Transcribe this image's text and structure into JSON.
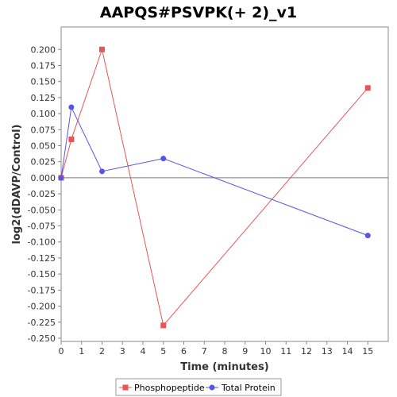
{
  "chart_data": {
    "type": "line",
    "title": "AAPQS#PSVPK(+ 2)_v1",
    "xlabel": "Time (minutes)",
    "ylabel": "log2(dDAVP/Control)",
    "xlim": [
      0,
      16
    ],
    "ylim": [
      -0.255,
      0.235
    ],
    "x_ticks": [
      0,
      1,
      2,
      3,
      4,
      5,
      6,
      7,
      8,
      9,
      10,
      11,
      12,
      13,
      14,
      15
    ],
    "y_ticks": [
      0.2,
      0.175,
      0.15,
      0.125,
      0.1,
      0.075,
      0.05,
      0.025,
      0.0,
      -0.025,
      -0.05,
      -0.075,
      -0.1,
      -0.125,
      -0.15,
      -0.175,
      -0.2,
      -0.225,
      -0.25
    ],
    "y_tick_labels": [
      "0.200",
      "0.175",
      "0.150",
      "0.125",
      "0.100",
      "0.075",
      "0.050",
      "0.025",
      "0.000",
      "-0.025",
      "-0.050",
      "-0.075",
      "-0.100",
      "-0.125",
      "-0.150",
      "-0.175",
      "-0.200",
      "-0.225",
      "-0.250"
    ],
    "grid": false,
    "zero_line": true,
    "legend_position": "bottom",
    "series": [
      {
        "name": "Phosphopeptide",
        "color": "#e85555",
        "marker": "square",
        "x": [
          0,
          0.5,
          2,
          5,
          15
        ],
        "y": [
          0.0,
          0.06,
          0.2,
          -0.23,
          0.14
        ]
      },
      {
        "name": "Total Protein",
        "color": "#5555e8",
        "marker": "circle",
        "x": [
          0,
          0.5,
          2,
          5,
          15
        ],
        "y": [
          0.0,
          0.11,
          0.01,
          0.03,
          -0.09
        ]
      }
    ]
  }
}
